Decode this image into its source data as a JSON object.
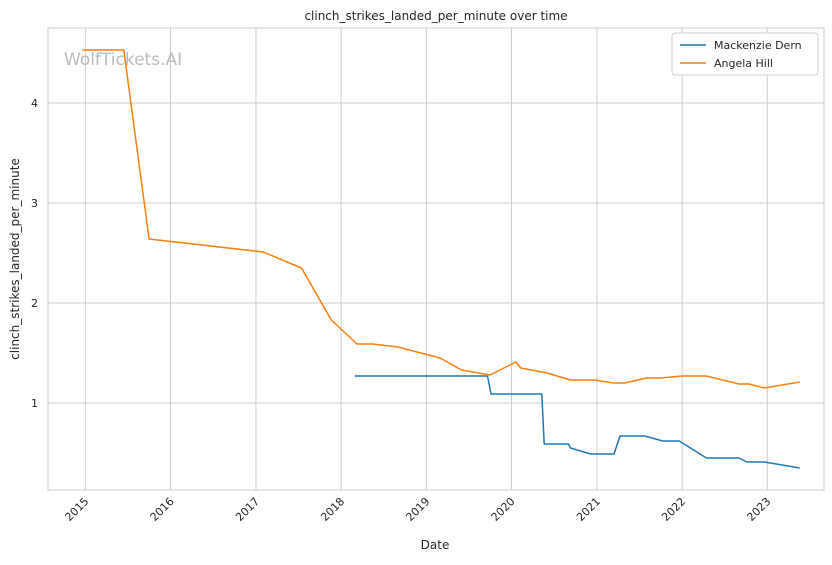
{
  "watermark": "WolfTickets.AI",
  "colors": {
    "dern": "#1f77b4",
    "hill": "#ff7f0e",
    "grid": "#cccccc",
    "frame": "#cccccc"
  },
  "chart_data": {
    "type": "line",
    "title": "clinch_strikes_landed_per_minute over time",
    "xlabel": "Date",
    "ylabel": "clinch_strikes_landed_per_minute",
    "x_type": "date",
    "xlim": [
      "2014-07-25",
      "2023-09-01"
    ],
    "ylim": [
      0.13,
      4.75
    ],
    "grid": true,
    "legend_position": "top-right",
    "x_ticks": [
      "2015",
      "2016",
      "2017",
      "2018",
      "2019",
      "2020",
      "2021",
      "2022",
      "2023"
    ],
    "y_ticks": [
      "1",
      "2",
      "3",
      "4"
    ],
    "series": [
      {
        "name": "Mackenzie Dern",
        "color": "#1f77b4",
        "points": [
          [
            "2018-03-01",
            1.27
          ],
          [
            "2019-09-20",
            1.27
          ],
          [
            "2019-10-05",
            1.09
          ],
          [
            "2020-05-10",
            1.09
          ],
          [
            "2020-05-20",
            0.59
          ],
          [
            "2020-09-01",
            0.59
          ],
          [
            "2020-09-10",
            0.55
          ],
          [
            "2020-12-05",
            0.49
          ],
          [
            "2021-03-15",
            0.49
          ],
          [
            "2021-04-10",
            0.67
          ],
          [
            "2021-07-25",
            0.67
          ],
          [
            "2021-10-10",
            0.62
          ],
          [
            "2021-12-20",
            0.62
          ],
          [
            "2022-04-15",
            0.45
          ],
          [
            "2022-09-01",
            0.45
          ],
          [
            "2022-10-05",
            0.41
          ],
          [
            "2022-12-20",
            0.41
          ],
          [
            "2023-05-20",
            0.35
          ]
        ]
      },
      {
        "name": "Angela Hill",
        "color": "#ff7f0e",
        "points": [
          [
            "2014-12-20",
            4.53
          ],
          [
            "2015-06-15",
            4.53
          ],
          [
            "2015-10-01",
            2.64
          ],
          [
            "2017-02-01",
            2.51
          ],
          [
            "2017-07-15",
            2.35
          ],
          [
            "2017-11-20",
            1.83
          ],
          [
            "2018-03-10",
            1.59
          ],
          [
            "2018-05-15",
            1.59
          ],
          [
            "2018-09-01",
            1.56
          ],
          [
            "2019-03-01",
            1.45
          ],
          [
            "2019-06-01",
            1.33
          ],
          [
            "2019-10-01",
            1.28
          ],
          [
            "2020-01-20",
            1.41
          ],
          [
            "2020-02-10",
            1.35
          ],
          [
            "2020-06-01",
            1.3
          ],
          [
            "2020-09-10",
            1.23
          ],
          [
            "2020-12-20",
            1.23
          ],
          [
            "2021-03-15",
            1.2
          ],
          [
            "2021-05-01",
            1.2
          ],
          [
            "2021-08-01",
            1.25
          ],
          [
            "2021-10-01",
            1.25
          ],
          [
            "2022-01-01",
            1.27
          ],
          [
            "2022-04-15",
            1.27
          ],
          [
            "2022-09-01",
            1.19
          ],
          [
            "2022-10-15",
            1.19
          ],
          [
            "2022-12-20",
            1.15
          ],
          [
            "2023-05-20",
            1.21
          ]
        ]
      }
    ]
  }
}
